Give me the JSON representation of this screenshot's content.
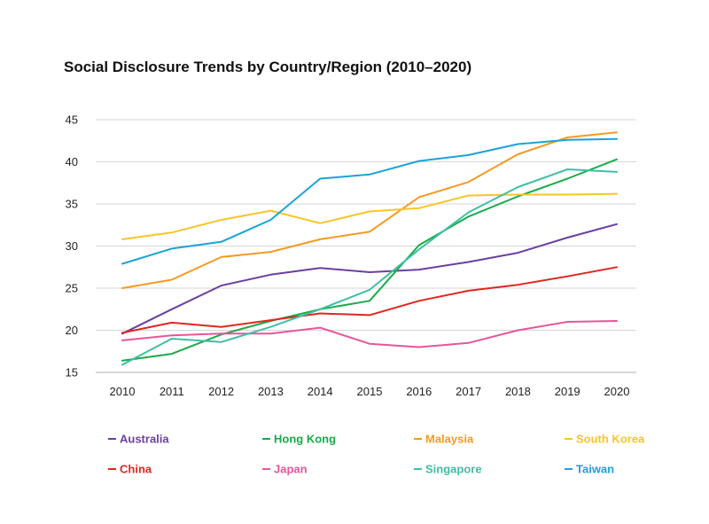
{
  "chart_data": {
    "type": "line",
    "title": "Social Disclosure Trends by Country/Region (2010–2020)",
    "xlabel": "",
    "ylabel": "",
    "x": [
      "2010",
      "2011",
      "2012",
      "2013",
      "2014",
      "2015",
      "2016",
      "2017",
      "2018",
      "2019",
      "2020"
    ],
    "ylim": [
      15,
      45
    ],
    "yticks": [
      "15",
      "20",
      "25",
      "30",
      "35",
      "40",
      "45"
    ],
    "grid": "horizontal",
    "legend_position": "bottom",
    "series": [
      {
        "name": "Australia",
        "color": "#6b3fa0",
        "values": [
          19.6,
          22.5,
          25.3,
          26.6,
          27.4,
          26.9,
          27.2,
          28.1,
          29.2,
          31.0,
          32.6
        ]
      },
      {
        "name": "Hong Kong",
        "color": "#1aab48",
        "values": [
          16.4,
          17.2,
          19.5,
          21.1,
          22.5,
          23.5,
          30.1,
          33.5,
          35.9,
          38.0,
          40.3
        ]
      },
      {
        "name": "Malaysia",
        "color": "#f59a23",
        "values": [
          25.0,
          26.0,
          28.7,
          29.3,
          30.8,
          31.7,
          35.8,
          37.6,
          40.9,
          42.9,
          43.5
        ]
      },
      {
        "name": "South Korea",
        "color": "#f9c528",
        "values": [
          30.8,
          31.6,
          33.1,
          34.2,
          32.7,
          34.1,
          34.5,
          36.0,
          36.1,
          36.1,
          36.2
        ]
      },
      {
        "name": "China",
        "color": "#e0261f",
        "values": [
          19.7,
          20.9,
          20.4,
          21.2,
          22.0,
          21.8,
          23.5,
          24.7,
          25.4,
          26.4,
          27.5
        ]
      },
      {
        "name": "Japan",
        "color": "#e8559a",
        "values": [
          18.8,
          19.4,
          19.6,
          19.6,
          20.3,
          18.4,
          18.0,
          18.5,
          20.0,
          21.0,
          21.1
        ]
      },
      {
        "name": "Singapore",
        "color": "#3fbfa6",
        "values": [
          15.9,
          19.0,
          18.6,
          20.4,
          22.5,
          24.8,
          29.6,
          34.0,
          37.0,
          39.1,
          38.8
        ]
      },
      {
        "name": "Taiwan",
        "color": "#1aa3d8",
        "values": [
          27.9,
          29.7,
          30.5,
          33.1,
          38.0,
          38.5,
          40.1,
          40.8,
          42.1,
          42.6,
          42.7
        ]
      }
    ]
  }
}
